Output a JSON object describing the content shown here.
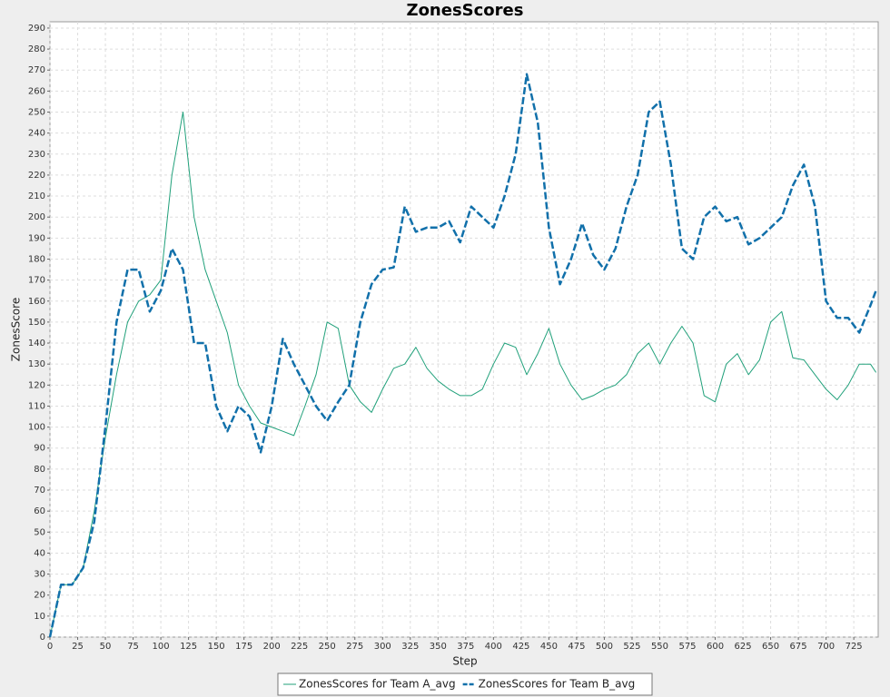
{
  "chart_data": {
    "type": "line",
    "title": "ZonesScores",
    "x_label": "Step",
    "y_label": "ZonesScore",
    "x": [
      0,
      10,
      20,
      30,
      40,
      50,
      60,
      70,
      80,
      90,
      100,
      110,
      120,
      130,
      140,
      150,
      160,
      170,
      180,
      190,
      200,
      210,
      220,
      230,
      240,
      250,
      260,
      270,
      280,
      290,
      300,
      310,
      320,
      330,
      340,
      350,
      360,
      370,
      380,
      390,
      400,
      410,
      420,
      430,
      440,
      450,
      460,
      470,
      480,
      490,
      500,
      510,
      520,
      530,
      540,
      550,
      560,
      570,
      580,
      590,
      600,
      610,
      620,
      630,
      640,
      650,
      660,
      670,
      680,
      690,
      700,
      710,
      720,
      730,
      740,
      745
    ],
    "series": [
      {
        "name": "ZonesScores for Team A_avg",
        "color": "#20a07a",
        "dashed": false,
        "values": [
          0,
          25,
          25,
          33,
          60,
          95,
          125,
          150,
          160,
          163,
          170,
          220,
          250,
          200,
          175,
          160,
          145,
          120,
          110,
          102,
          100,
          98,
          96,
          110,
          125,
          150,
          147,
          120,
          112,
          107,
          118,
          128,
          130,
          138,
          128,
          122,
          118,
          115,
          115,
          118,
          130,
          140,
          138,
          125,
          135,
          147,
          130,
          120,
          113,
          115,
          118,
          120,
          125,
          135,
          140,
          130,
          140,
          148,
          140,
          115,
          112,
          130,
          135,
          125,
          132,
          150,
          155,
          133,
          132,
          125,
          118,
          113,
          120,
          130,
          130,
          126
        ]
      },
      {
        "name": "ZonesScores for Team B_avg",
        "color": "#1170aa",
        "dashed": true,
        "values": [
          0,
          25,
          25,
          33,
          55,
          100,
          150,
          175,
          175,
          155,
          165,
          185,
          175,
          140,
          140,
          110,
          98,
          110,
          105,
          88,
          110,
          142,
          130,
          120,
          110,
          103,
          112,
          120,
          150,
          168,
          175,
          176,
          205,
          193,
          195,
          195,
          198,
          188,
          205,
          200,
          195,
          210,
          230,
          268,
          245,
          195,
          168,
          180,
          197,
          182,
          175,
          185,
          205,
          220,
          250,
          255,
          225,
          185,
          180,
          200,
          205,
          198,
          200,
          187,
          190,
          195,
          200,
          215,
          225,
          205,
          160,
          152,
          152,
          145,
          158,
          165
        ]
      }
    ],
    "xlim": [
      0,
      747
    ],
    "ylim": [
      0,
      293
    ],
    "xticks": [
      0,
      25,
      50,
      75,
      100,
      125,
      150,
      175,
      200,
      225,
      250,
      275,
      300,
      325,
      350,
      375,
      400,
      425,
      450,
      475,
      500,
      525,
      550,
      575,
      600,
      625,
      650,
      675,
      700,
      725
    ],
    "yticks": [
      0,
      10,
      20,
      30,
      40,
      50,
      60,
      70,
      80,
      90,
      100,
      110,
      120,
      130,
      140,
      150,
      160,
      170,
      180,
      190,
      200,
      210,
      220,
      230,
      240,
      250,
      260,
      270,
      280,
      290
    ],
    "grid": true,
    "legend": "bottom"
  }
}
